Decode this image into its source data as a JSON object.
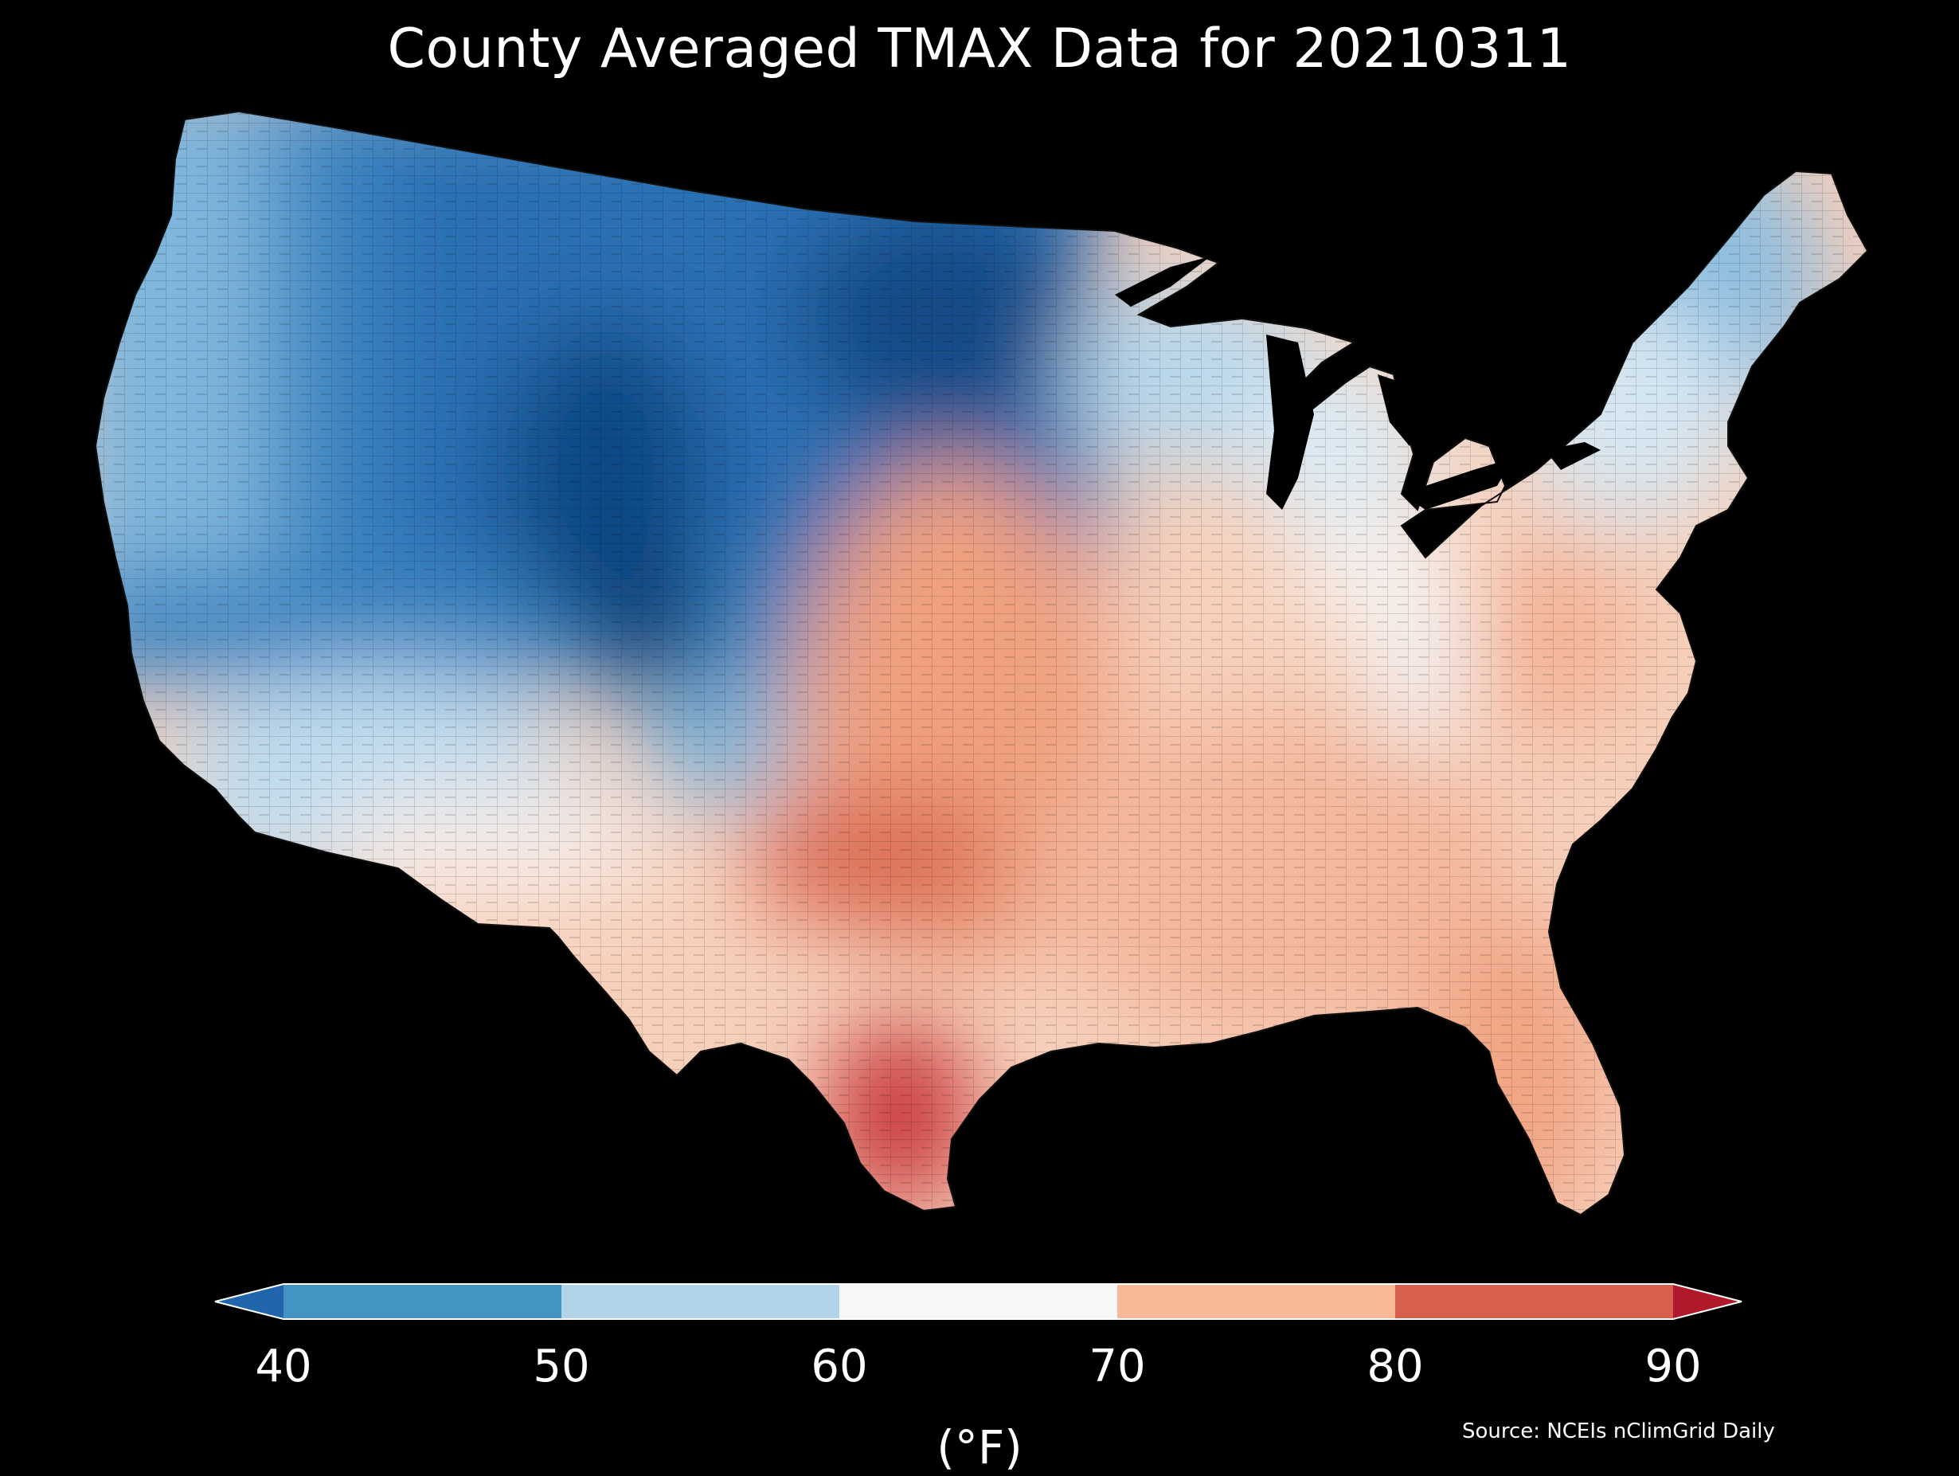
{
  "title": "County Averaged TMAX Data for 20210311",
  "colorbar": {
    "unit": "(°F)",
    "ticks": [
      "40",
      "50",
      "60",
      "70",
      "80",
      "90"
    ],
    "bins": [
      {
        "from": null,
        "to": 40,
        "color": "#2166ac"
      },
      {
        "from": 40,
        "to": 50,
        "color": "#4393c3"
      },
      {
        "from": 50,
        "to": 60,
        "color": "#b2d4e8"
      },
      {
        "from": 60,
        "to": 70,
        "color": "#f7f7f7"
      },
      {
        "from": 70,
        "to": 80,
        "color": "#f7b898"
      },
      {
        "from": 80,
        "to": 90,
        "color": "#d6604d"
      },
      {
        "from": 90,
        "to": null,
        "color": "#b2182b"
      }
    ]
  },
  "source": "Source: NCEIs nClimGrid Daily",
  "map": {
    "variable": "TMAX",
    "units": "°F",
    "temperature_scale": [
      {
        "value": 38,
        "color": "#0b3f78"
      },
      {
        "value": 45,
        "color": "#2a6fb3"
      },
      {
        "value": 52,
        "color": "#6aa9d4"
      },
      {
        "value": 60,
        "color": "#cfe4f1"
      },
      {
        "value": 66,
        "color": "#f6f3f1"
      },
      {
        "value": 72,
        "color": "#f8cdb4"
      },
      {
        "value": 78,
        "color": "#ee9a77"
      },
      {
        "value": 84,
        "color": "#da6a53"
      },
      {
        "value": 90,
        "color": "#c2272f"
      }
    ]
  }
}
